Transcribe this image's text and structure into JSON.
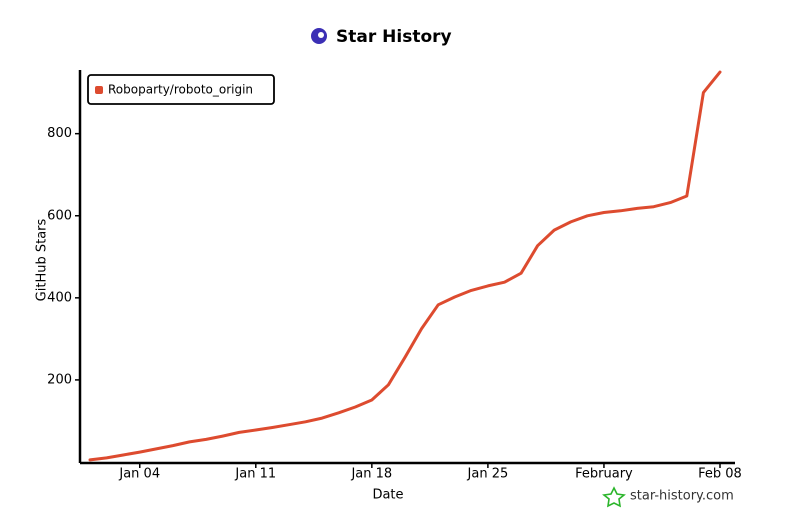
{
  "chart_data": {
    "type": "line",
    "title": "Star History",
    "x_label": "Date",
    "y_label": "GitHub Stars",
    "watermark": "star-history.com",
    "x": [
      "Jan 01",
      "Jan 02",
      "Jan 03",
      "Jan 04",
      "Jan 05",
      "Jan 06",
      "Jan 07",
      "Jan 08",
      "Jan 09",
      "Jan 10",
      "Jan 11",
      "Jan 12",
      "Jan 13",
      "Jan 14",
      "Jan 15",
      "Jan 16",
      "Jan 17",
      "Jan 18",
      "Jan 19",
      "Jan 20",
      "Jan 21",
      "Jan 22",
      "Jan 23",
      "Jan 24",
      "Jan 25",
      "Jan 26",
      "Jan 27",
      "Jan 28",
      "Jan 29",
      "Jan 30",
      "Jan 31",
      "Feb 01",
      "Feb 02",
      "Feb 03",
      "Feb 04",
      "Feb 05",
      "Feb 06",
      "Feb 07",
      "Feb 08"
    ],
    "series": [
      {
        "name": "Roboparty/roboto_origin",
        "color": "#dd4b2f",
        "values": [
          5,
          10,
          17,
          24,
          32,
          40,
          49,
          55,
          63,
          72,
          78,
          84,
          91,
          98,
          107,
          120,
          134,
          151,
          188,
          255,
          325,
          383,
          402,
          418,
          429,
          438,
          460,
          527,
          565,
          585,
          600,
          608,
          612,
          618,
          622,
          632,
          648,
          900,
          950
        ]
      }
    ],
    "xticks": [
      {
        "value": "Jan 04",
        "label": "Jan 04"
      },
      {
        "value": "Jan 11",
        "label": "Jan 11"
      },
      {
        "value": "Jan 18",
        "label": "Jan 18"
      },
      {
        "value": "Jan 25",
        "label": "Jan 25"
      },
      {
        "value": "Feb 01",
        "label": "February"
      },
      {
        "value": "Feb 08",
        "label": "Feb 08"
      }
    ],
    "ylim": [
      0,
      960
    ],
    "yticks": [
      200,
      400,
      600,
      800
    ],
    "legend": "top-left",
    "grid": false
  }
}
